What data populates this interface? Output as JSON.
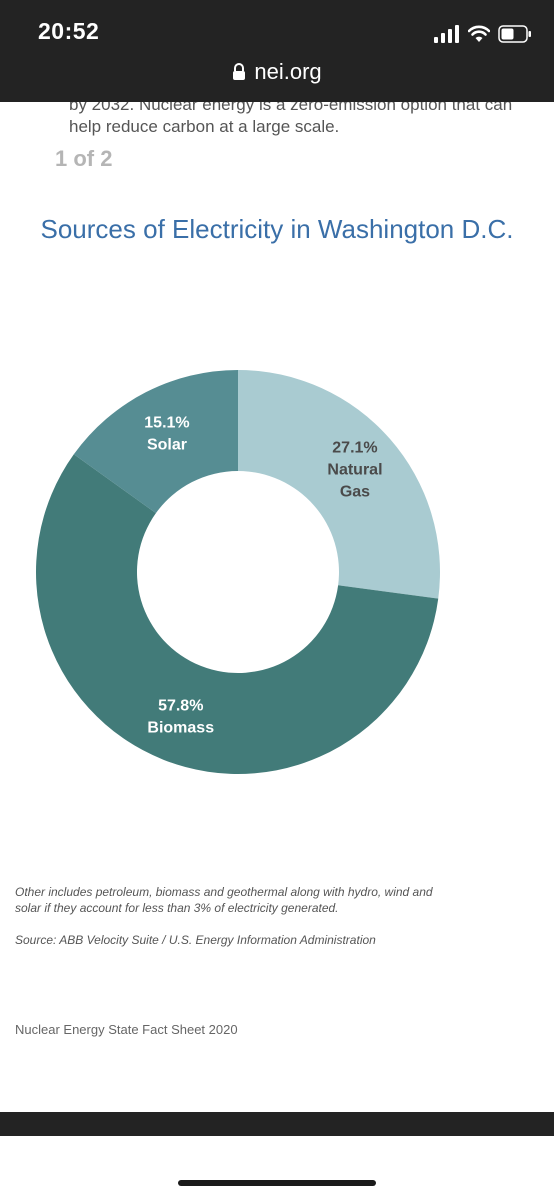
{
  "status_bar": {
    "time": "20:52",
    "url": "nei.org",
    "icons": [
      "signal-icon",
      "wifi-icon",
      "battery-icon",
      "lock-icon"
    ]
  },
  "intro": {
    "text": "by 2032. Nuclear energy is a zero-emission option that can help reduce carbon at a large scale."
  },
  "pager": {
    "label": "1 of 2"
  },
  "chart_data": {
    "type": "pie",
    "title": "Sources of Electricity in Washington D.C.",
    "slices": [
      {
        "label": "Natural Gas",
        "label_lines": [
          "Natural",
          "Gas"
        ],
        "percent_label": "27.1%",
        "value": 27.1,
        "color": "#a9cbd1",
        "text_color": "#4a4a4a"
      },
      {
        "label": "Biomass",
        "label_lines": [
          "Biomass"
        ],
        "percent_label": "57.8%",
        "value": 57.8,
        "color": "#427b79",
        "text_color": "#ffffff"
      },
      {
        "label": "Solar",
        "label_lines": [
          "Solar"
        ],
        "percent_label": "15.1%",
        "value": 15.1,
        "color": "#568d93",
        "text_color": "#ffffff"
      }
    ]
  },
  "footnotes": {
    "other": "Other includes petroleum, biomass and geothermal along with hydro, wind and solar if they account for less than 3% of electricity generated.",
    "source": "Source: ABB Velocity Suite / U.S. Energy Information Administration"
  },
  "footer": {
    "text": "Nuclear Energy State Fact Sheet 2020"
  }
}
